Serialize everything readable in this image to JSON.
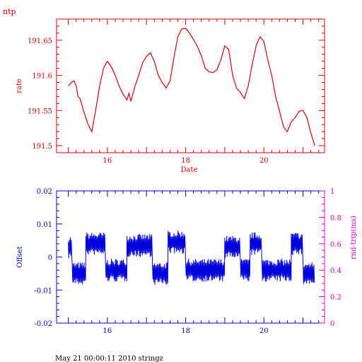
{
  "app_label": "ntp",
  "footer": "May 21 00:00:11 2010 stringz",
  "colors": {
    "rate": "#e00000",
    "offset": "#0000dd",
    "rtt": "#dd00dd",
    "text": "#000000"
  },
  "chart_data": [
    {
      "type": "line",
      "ylabel": "rate",
      "xlabel": "Date",
      "xlim": [
        14.7,
        21.55
      ],
      "ylim": [
        191.49,
        191.68
      ],
      "xticks": [
        "16",
        "18",
        "20"
      ],
      "yticks": [
        "191.5",
        "191.55",
        "191.6",
        "191.65"
      ],
      "series": [
        {
          "x": [
            15.0,
            15.1,
            15.15,
            15.2,
            15.25,
            15.3,
            15.4,
            15.5,
            15.6,
            15.7,
            15.8,
            15.9,
            16.0,
            16.1,
            16.2,
            16.3,
            16.4,
            16.5,
            16.55,
            16.6,
            16.7,
            16.8,
            16.9,
            17.0,
            17.1,
            17.2,
            17.3,
            17.4,
            17.5,
            17.6,
            17.7,
            17.8,
            17.9,
            18.0,
            18.1,
            18.2,
            18.3,
            18.4,
            18.5,
            18.6,
            18.7,
            18.8,
            18.9,
            19.0,
            19.1,
            19.2,
            19.3,
            19.4,
            19.5,
            19.6,
            19.7,
            19.8,
            19.9,
            20.0,
            20.1,
            20.2,
            20.3,
            20.4,
            20.5,
            20.6,
            20.7,
            20.8,
            20.9,
            21.0,
            21.1,
            21.2,
            21.3
          ],
          "y": [
            191.585,
            191.591,
            191.592,
            191.585,
            191.57,
            191.567,
            191.548,
            191.531,
            191.52,
            191.55,
            191.585,
            191.61,
            191.62,
            191.612,
            191.6,
            191.585,
            191.573,
            191.565,
            191.575,
            191.563,
            191.584,
            191.6,
            191.618,
            191.627,
            191.632,
            191.62,
            191.6,
            191.59,
            191.582,
            191.592,
            191.625,
            191.655,
            191.666,
            191.667,
            191.66,
            191.651,
            191.641,
            191.628,
            191.61,
            191.605,
            191.604,
            191.608,
            191.622,
            191.642,
            191.637,
            191.6,
            191.582,
            191.576,
            191.567,
            191.585,
            191.615,
            191.642,
            191.655,
            191.648,
            191.622,
            191.6,
            191.57,
            191.549,
            191.527,
            191.52,
            191.534,
            191.54,
            191.549,
            191.55,
            191.54,
            191.518,
            191.5
          ]
        }
      ]
    },
    {
      "type": "line",
      "ylabel": "Offset",
      "y2label": "rnd-trip(ms)",
      "xlim": [
        14.7,
        21.55
      ],
      "ylim": [
        -0.02,
        0.02
      ],
      "y2lim": [
        0,
        1
      ],
      "xticks": [
        "16",
        "18",
        "20"
      ],
      "yticks": [
        "-0.02",
        "-0.01",
        "0",
        "0.01",
        "0.02"
      ],
      "y2ticks": [
        "0",
        "0.2",
        "0.4",
        "0.6",
        "0.8",
        "1"
      ],
      "series": [
        {
          "segments": [
            {
              "x0": 15.0,
              "x1": 15.1,
              "level": 0.003
            },
            {
              "x0": 15.1,
              "x1": 15.45,
              "level": -0.005
            },
            {
              "x0": 15.45,
              "x1": 15.95,
              "level": 0.004
            },
            {
              "x0": 15.95,
              "x1": 16.5,
              "level": -0.004
            },
            {
              "x0": 16.5,
              "x1": 17.15,
              "level": 0.0035
            },
            {
              "x0": 17.15,
              "x1": 17.55,
              "level": -0.005
            },
            {
              "x0": 17.55,
              "x1": 18.0,
              "level": 0.0045
            },
            {
              "x0": 18.0,
              "x1": 18.6,
              "level": -0.004
            },
            {
              "x0": 18.6,
              "x1": 19.0,
              "level": -0.004
            },
            {
              "x0": 19.0,
              "x1": 19.4,
              "level": 0.003
            },
            {
              "x0": 19.4,
              "x1": 19.65,
              "level": -0.004
            },
            {
              "x0": 19.65,
              "x1": 19.95,
              "level": 0.004
            },
            {
              "x0": 19.95,
              "x1": 20.7,
              "level": -0.004
            },
            {
              "x0": 20.7,
              "x1": 21.0,
              "level": 0.004
            },
            {
              "x0": 21.0,
              "x1": 21.3,
              "level": -0.005
            }
          ],
          "amplitude": 0.0035
        }
      ]
    }
  ]
}
